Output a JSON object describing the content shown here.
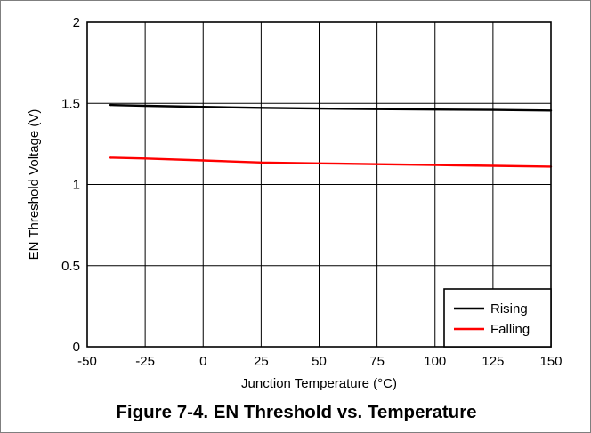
{
  "figure_caption": "Figure 7-4. EN Threshold vs. Temperature",
  "chart_data": {
    "type": "line",
    "title": "",
    "xlabel": "Junction Temperature (°C)",
    "ylabel": "EN Threshold Voltage (V)",
    "xlim": [
      -50,
      150
    ],
    "ylim": [
      0,
      2
    ],
    "x_ticks": [
      "-50",
      "-25",
      "0",
      "25",
      "50",
      "75",
      "100",
      "125",
      "150"
    ],
    "y_ticks": [
      "0",
      "0.5",
      "1",
      "1.5",
      "2"
    ],
    "grid": true,
    "legend_position": "bottom-right",
    "series": [
      {
        "name": "Rising",
        "color": "#000000",
        "x": [
          -40,
          -25,
          0,
          25,
          50,
          75,
          100,
          125,
          150
        ],
        "y": [
          1.49,
          1.485,
          1.478,
          1.472,
          1.468,
          1.465,
          1.462,
          1.46,
          1.456
        ]
      },
      {
        "name": "Falling",
        "color": "#ff0000",
        "x": [
          -40,
          -25,
          0,
          25,
          50,
          75,
          100,
          125,
          150
        ],
        "y": [
          1.165,
          1.16,
          1.148,
          1.135,
          1.13,
          1.125,
          1.12,
          1.115,
          1.11
        ]
      }
    ]
  }
}
